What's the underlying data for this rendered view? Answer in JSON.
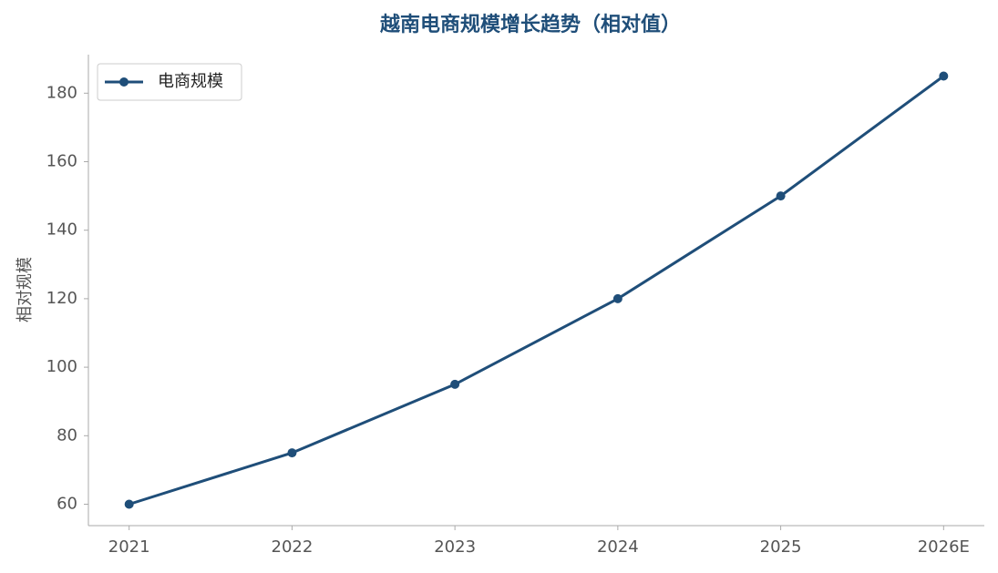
{
  "chart_data": {
    "type": "line",
    "title": "越南电商规模增长趋势（相对值）",
    "y_label": "相对规模",
    "categories": [
      "2021",
      "2022",
      "2023",
      "2024",
      "2025",
      "2026E"
    ],
    "series": [
      {
        "name": "电商规模",
        "color": "#1f4e79",
        "values": [
          60,
          75,
          95,
          120,
          150,
          185
        ]
      }
    ],
    "ylim": [
      53.75,
      191.25
    ],
    "yticks": [
      60,
      80,
      100,
      120,
      140,
      160,
      180
    ],
    "grid": false,
    "legend": "upper-left"
  }
}
